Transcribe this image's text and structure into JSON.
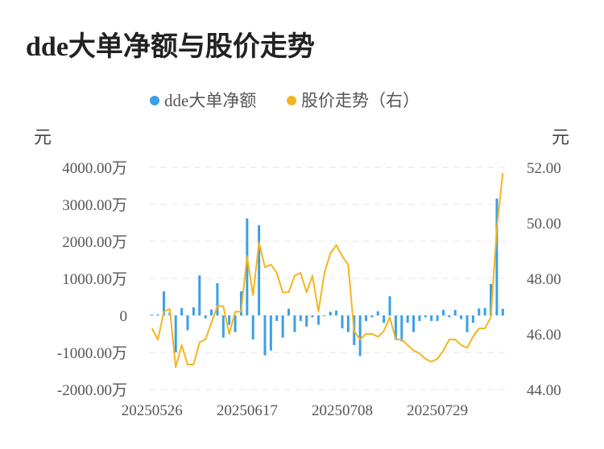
{
  "title": "dde大单净额与股价走势",
  "colors": {
    "bar": "#3ba0e6",
    "line": "#f4b51e",
    "grid": "#e6e6e6"
  },
  "chart_data": {
    "type": "bar+line",
    "legend": [
      "dde大单净额",
      "股价走势（右）"
    ],
    "legend_position": "top-center",
    "left_unit": "元",
    "right_unit": "元",
    "left_ticks": [
      "4000.00万",
      "3000.00万",
      "2000.00万",
      "1000.00万",
      "0",
      "-1000.00万",
      "-2000.00万"
    ],
    "right_ticks": [
      "52.00",
      "50.00",
      "48.00",
      "46.00",
      "44.00"
    ],
    "ylim_left": [
      -2000,
      4000
    ],
    "ylim_right": [
      44,
      52
    ],
    "x_ticks": [
      "20250526",
      "20250617",
      "20250708",
      "20250729"
    ],
    "x_tick_index": [
      0,
      16,
      32,
      48
    ],
    "grid": true,
    "series": [
      {
        "name": "dde大单净额",
        "axis": "left",
        "kind": "bar",
        "unit": "万",
        "values": [
          20,
          30,
          650,
          80,
          -1000,
          200,
          -400,
          220,
          1080,
          -80,
          160,
          870,
          -600,
          -250,
          -450,
          650,
          2620,
          -650,
          2440,
          -1080,
          -950,
          -150,
          -600,
          180,
          -450,
          -150,
          -300,
          -50,
          -250,
          0,
          100,
          130,
          -350,
          -450,
          -800,
          -1100,
          -150,
          -50,
          110,
          -200,
          520,
          -650,
          -700,
          -200,
          -450,
          -150,
          -50,
          -150,
          -150,
          150,
          -50,
          150,
          -100,
          -450,
          -200,
          190,
          200,
          850,
          3160,
          180
        ]
      },
      {
        "name": "股价走势（右）",
        "axis": "right",
        "kind": "line",
        "values": [
          46.2,
          45.8,
          46.8,
          46.9,
          44.8,
          45.6,
          44.9,
          44.9,
          45.7,
          45.8,
          46.4,
          47.0,
          47.0,
          46.0,
          46.8,
          46.8,
          48.8,
          47.4,
          49.3,
          48.4,
          48.5,
          48.2,
          47.5,
          47.5,
          48.1,
          48.2,
          47.5,
          48.1,
          46.8,
          48.2,
          48.9,
          49.2,
          48.8,
          48.5,
          46.1,
          45.8,
          46.0,
          46.0,
          45.9,
          46.1,
          46.6,
          45.8,
          45.8,
          45.6,
          45.4,
          45.3,
          45.1,
          45.0,
          45.1,
          45.4,
          45.8,
          45.8,
          45.6,
          45.5,
          45.9,
          46.2,
          46.2,
          46.6,
          49.8,
          51.8
        ]
      }
    ]
  }
}
